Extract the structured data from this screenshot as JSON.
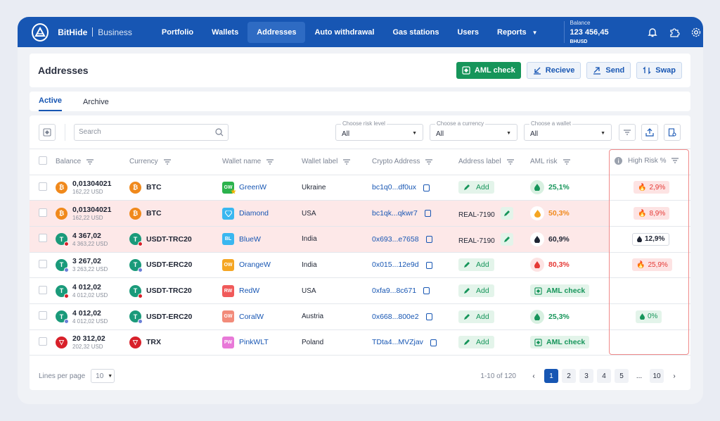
{
  "header": {
    "brand": "BitHide",
    "brand_sub": "Business",
    "nav": [
      {
        "label": "Portfolio"
      },
      {
        "label": "Wallets"
      },
      {
        "label": "Addresses"
      },
      {
        "label": "Auto withdrawal"
      },
      {
        "label": "Gas stations"
      },
      {
        "label": "Users"
      },
      {
        "label": "Reports"
      }
    ],
    "active_nav": "Addresses",
    "balance_label": "Balance",
    "balance_value": "123 456,45",
    "balance_unit": "BHUSD",
    "icons": [
      "bell-icon",
      "puzzle-icon",
      "gear-icon"
    ]
  },
  "page": {
    "title": "Addresses",
    "aml_check": "AML check",
    "receive": "Recieve",
    "send": "Send",
    "swap": "Swap"
  },
  "tabs": [
    {
      "label": "Active"
    },
    {
      "label": "Archive"
    }
  ],
  "filters": {
    "search_placeholder": "Search",
    "risk_label": "Choose risk level",
    "risk_value": "All",
    "currency_label": "Choose a currency",
    "currency_value": "All",
    "wallet_label": "Choose a wallet",
    "wallet_value": "All"
  },
  "columns": {
    "balance": "Balance",
    "currency": "Currency",
    "wallet_name": "Wallet name",
    "wallet_label": "Wallet label",
    "crypto_address": "Crypto Address",
    "address_label": "Address label",
    "aml_risk": "AML risk",
    "high_risk": "High Risk %"
  },
  "rows": [
    {
      "balance": "0,01304021",
      "usd": "162,22 USD",
      "currency": "BTC",
      "wallet_badge": "GW",
      "wallet_name": "GreenW",
      "wallet_label": "Ukraine",
      "address": "bc1q0...df0ux",
      "address_label": "Add",
      "aml_risk": "25,1%",
      "high_risk": "2,9%"
    },
    {
      "balance": "0,01304021",
      "usd": "162,22 USD",
      "currency": "BTC",
      "wallet_badge": "",
      "wallet_name": "Diamond",
      "wallet_label": "USA",
      "address": "bc1qk...qkwr7",
      "address_label": "REAL-7190",
      "aml_risk": "50,3%",
      "high_risk": "8,9%"
    },
    {
      "balance": "4 367,02",
      "usd": "4 363,22 USD",
      "currency": "USDT-TRC20",
      "wallet_badge": "BL",
      "wallet_name": "BlueW",
      "wallet_label": "India",
      "address": "0x693...e7658",
      "address_label": "REAL-7190",
      "aml_risk": "60,9%",
      "high_risk": "12,9%"
    },
    {
      "balance": "3 267,02",
      "usd": "3 263,22 USD",
      "currency": "USDT-ERC20",
      "wallet_badge": "OW",
      "wallet_name": "OrangeW",
      "wallet_label": "India",
      "address": "0x015...12e9d",
      "address_label": "Add",
      "aml_risk": "80,3%",
      "high_risk": "25,9%"
    },
    {
      "balance": "4 012,02",
      "usd": "4 012,02 USD",
      "currency": "USDT-TRC20",
      "wallet_badge": "RW",
      "wallet_name": "RedW",
      "wallet_label": "USA",
      "address": "0xfa9...8c671",
      "address_label": "Add",
      "aml_risk": "AML check",
      "high_risk": ""
    },
    {
      "balance": "4 012,02",
      "usd": "4 012,02 USD",
      "currency": "USDT-ERC20",
      "wallet_badge": "GW",
      "wallet_name": "CoralW",
      "wallet_label": "Austria",
      "address": "0x668...800e2",
      "address_label": "Add",
      "aml_risk": "25,3%",
      "high_risk": "0%"
    },
    {
      "balance": "20 312,02",
      "usd": "202,32 USD",
      "currency": "TRX",
      "wallet_badge": "PW",
      "wallet_name": "PinkWLT",
      "wallet_label": "Poland",
      "address": "TDta4...MVZjav",
      "address_label": "Add",
      "aml_risk": "AML check",
      "high_risk": ""
    }
  ],
  "footer": {
    "lines_per_page_label": "Lines per page",
    "lines_per_page_value": "10",
    "range": "1-10 of 120",
    "pages": [
      "1",
      "2",
      "3",
      "4",
      "5",
      "...",
      "10"
    ]
  },
  "colors": {
    "primary": "#1756b3",
    "green": "#16955a",
    "red": "#e53935",
    "orange": "#f0891c"
  }
}
